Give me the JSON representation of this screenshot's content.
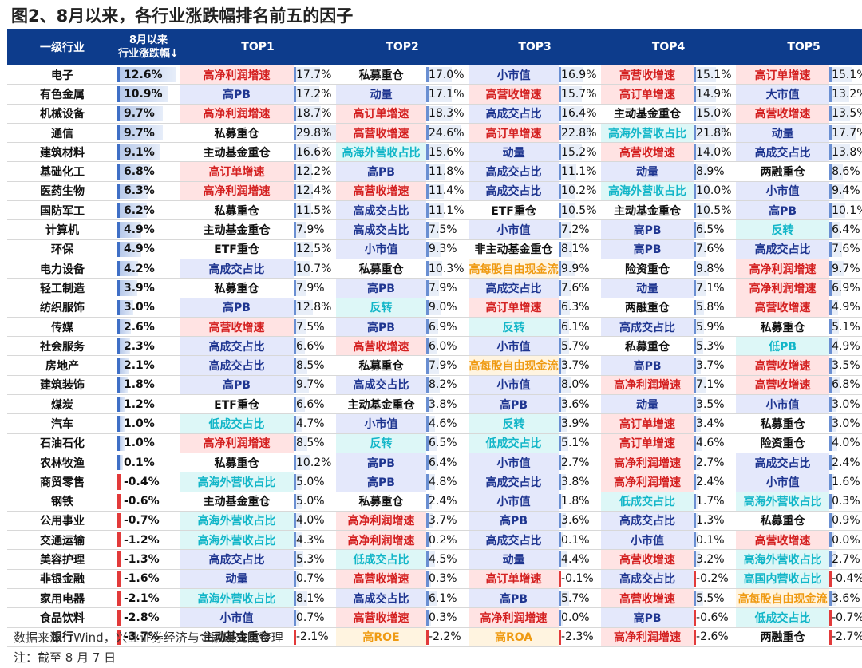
{
  "title": "图2、8月以来，各行业涨跌幅排名前五的因子",
  "header": {
    "industry": "一级行业",
    "perf_line1": "8月以来",
    "perf_line2": "行业涨跌幅↓",
    "tops": [
      "TOP1",
      "TOP2",
      "TOP3",
      "TOP4",
      "TOP5"
    ]
  },
  "colors": {
    "header_bg": "#0d3c8c",
    "red": "#d42020",
    "blue": "#1e3590",
    "cyan": "#12b6c8",
    "orange": "#ef9a12"
  },
  "rows": [
    {
      "industry": "电子",
      "perf": "12.6%",
      "perf_num": 12.6,
      "factors": [
        [
          "高净利润增速",
          "red",
          "17.7%",
          17.7
        ],
        [
          "私募重仓",
          "plain",
          "17.0%",
          17.0
        ],
        [
          "小市值",
          "blue",
          "16.9%",
          16.9
        ],
        [
          "高营收增速",
          "red",
          "15.1%",
          15.1
        ],
        [
          "高订单增速",
          "red",
          "15.1%",
          15.1
        ]
      ]
    },
    {
      "industry": "有色金属",
      "perf": "10.9%",
      "perf_num": 10.9,
      "factors": [
        [
          "高PB",
          "blue",
          "17.2%",
          17.2
        ],
        [
          "动量",
          "blue",
          "17.1%",
          17.1
        ],
        [
          "高营收增速",
          "red",
          "15.7%",
          15.7
        ],
        [
          "高订单增速",
          "red",
          "14.9%",
          14.9
        ],
        [
          "大市值",
          "blue",
          "13.2%",
          13.2
        ]
      ]
    },
    {
      "industry": "机械设备",
      "perf": "9.7%",
      "perf_num": 9.7,
      "factors": [
        [
          "高净利润增速",
          "red",
          "18.7%",
          18.7
        ],
        [
          "高订单增速",
          "red",
          "18.3%",
          18.3
        ],
        [
          "高成交占比",
          "blue",
          "16.4%",
          16.4
        ],
        [
          "主动基金重仓",
          "plain",
          "15.0%",
          15.0
        ],
        [
          "高营收增速",
          "red",
          "13.5%",
          13.5
        ]
      ]
    },
    {
      "industry": "通信",
      "perf": "9.7%",
      "perf_num": 9.7,
      "factors": [
        [
          "私募重仓",
          "plain",
          "29.8%",
          29.8
        ],
        [
          "高营收增速",
          "red",
          "24.6%",
          24.6
        ],
        [
          "高订单增速",
          "red",
          "22.8%",
          22.8
        ],
        [
          "高海外营收占比",
          "cyan",
          "21.8%",
          21.8
        ],
        [
          "动量",
          "blue",
          "17.7%",
          17.7
        ]
      ]
    },
    {
      "industry": "建筑材料",
      "perf": "9.1%",
      "perf_num": 9.1,
      "factors": [
        [
          "主动基金重仓",
          "plain",
          "16.6%",
          16.6
        ],
        [
          "高海外营收占比",
          "cyan",
          "15.6%",
          15.6
        ],
        [
          "动量",
          "blue",
          "15.2%",
          15.2
        ],
        [
          "高营收增速",
          "red",
          "14.0%",
          14.0
        ],
        [
          "高成交占比",
          "blue",
          "13.8%",
          13.8
        ]
      ]
    },
    {
      "industry": "基础化工",
      "perf": "6.8%",
      "perf_num": 6.8,
      "factors": [
        [
          "高订单增速",
          "red",
          "12.2%",
          12.2
        ],
        [
          "高PB",
          "blue",
          "11.8%",
          11.8
        ],
        [
          "高成交占比",
          "blue",
          "11.1%",
          11.1
        ],
        [
          "动量",
          "blue",
          "8.9%",
          8.9
        ],
        [
          "两融重仓",
          "plain",
          "8.6%",
          8.6
        ]
      ]
    },
    {
      "industry": "医药生物",
      "perf": "6.3%",
      "perf_num": 6.3,
      "factors": [
        [
          "高净利润增速",
          "red",
          "12.4%",
          12.4
        ],
        [
          "高营收增速",
          "red",
          "11.4%",
          11.4
        ],
        [
          "高成交占比",
          "blue",
          "10.2%",
          10.2
        ],
        [
          "高海外营收占比",
          "cyan",
          "10.0%",
          10.0
        ],
        [
          "小市值",
          "blue",
          "9.4%",
          9.4
        ]
      ]
    },
    {
      "industry": "国防军工",
      "perf": "6.2%",
      "perf_num": 6.2,
      "factors": [
        [
          "私募重仓",
          "plain",
          "11.5%",
          11.5
        ],
        [
          "高成交占比",
          "blue",
          "11.1%",
          11.1
        ],
        [
          "ETF重仓",
          "plain",
          "10.5%",
          10.5
        ],
        [
          "主动基金重仓",
          "plain",
          "10.5%",
          10.5
        ],
        [
          "高PB",
          "blue",
          "10.1%",
          10.1
        ]
      ]
    },
    {
      "industry": "计算机",
      "perf": "4.9%",
      "perf_num": 4.9,
      "factors": [
        [
          "主动基金重仓",
          "plain",
          "7.9%",
          7.9
        ],
        [
          "高成交占比",
          "blue",
          "7.5%",
          7.5
        ],
        [
          "小市值",
          "blue",
          "7.2%",
          7.2
        ],
        [
          "高PB",
          "blue",
          "6.5%",
          6.5
        ],
        [
          "反转",
          "cyan",
          "6.4%",
          6.4
        ]
      ]
    },
    {
      "industry": "环保",
      "perf": "4.9%",
      "perf_num": 4.9,
      "factors": [
        [
          "ETF重仓",
          "plain",
          "12.5%",
          12.5
        ],
        [
          "小市值",
          "blue",
          "9.3%",
          9.3
        ],
        [
          "非主动基金重仓",
          "plain",
          "8.1%",
          8.1
        ],
        [
          "高PB",
          "blue",
          "7.6%",
          7.6
        ],
        [
          "高成交占比",
          "blue",
          "7.6%",
          7.6
        ]
      ]
    },
    {
      "industry": "电力设备",
      "perf": "4.2%",
      "perf_num": 4.2,
      "factors": [
        [
          "高成交占比",
          "blue",
          "10.7%",
          10.7
        ],
        [
          "私募重仓",
          "plain",
          "10.3%",
          10.3
        ],
        [
          "高每股自由现金流",
          "orange",
          "9.9%",
          9.9
        ],
        [
          "险资重仓",
          "plain",
          "9.8%",
          9.8
        ],
        [
          "高净利润增速",
          "red",
          "9.7%",
          9.7
        ]
      ]
    },
    {
      "industry": "轻工制造",
      "perf": "3.9%",
      "perf_num": 3.9,
      "factors": [
        [
          "私募重仓",
          "plain",
          "7.9%",
          7.9
        ],
        [
          "高PB",
          "blue",
          "7.9%",
          7.9
        ],
        [
          "高成交占比",
          "blue",
          "7.6%",
          7.6
        ],
        [
          "动量",
          "blue",
          "7.1%",
          7.1
        ],
        [
          "高净利润增速",
          "red",
          "6.9%",
          6.9
        ]
      ]
    },
    {
      "industry": "纺织服饰",
      "perf": "3.0%",
      "perf_num": 3.0,
      "factors": [
        [
          "高PB",
          "blue",
          "12.8%",
          12.8
        ],
        [
          "反转",
          "cyan",
          "9.0%",
          9.0
        ],
        [
          "高订单增速",
          "red",
          "6.3%",
          6.3
        ],
        [
          "两融重仓",
          "plain",
          "5.8%",
          5.8
        ],
        [
          "高营收增速",
          "red",
          "4.9%",
          4.9
        ]
      ]
    },
    {
      "industry": "传媒",
      "perf": "2.6%",
      "perf_num": 2.6,
      "factors": [
        [
          "高营收增速",
          "red",
          "7.5%",
          7.5
        ],
        [
          "高PB",
          "blue",
          "6.9%",
          6.9
        ],
        [
          "反转",
          "cyan",
          "6.1%",
          6.1
        ],
        [
          "高成交占比",
          "blue",
          "5.9%",
          5.9
        ],
        [
          "私募重仓",
          "plain",
          "5.1%",
          5.1
        ]
      ]
    },
    {
      "industry": "社会服务",
      "perf": "2.3%",
      "perf_num": 2.3,
      "factors": [
        [
          "高成交占比",
          "blue",
          "6.6%",
          6.6
        ],
        [
          "高营收增速",
          "red",
          "6.0%",
          6.0
        ],
        [
          "小市值",
          "blue",
          "5.7%",
          5.7
        ],
        [
          "私募重仓",
          "plain",
          "5.3%",
          5.3
        ],
        [
          "低PB",
          "cyan",
          "4.9%",
          4.9
        ]
      ]
    },
    {
      "industry": "房地产",
      "perf": "2.1%",
      "perf_num": 2.1,
      "factors": [
        [
          "高成交占比",
          "blue",
          "8.5%",
          8.5
        ],
        [
          "私募重仓",
          "plain",
          "7.9%",
          7.9
        ],
        [
          "高每股自由现金流",
          "orange",
          "3.7%",
          3.7
        ],
        [
          "高PB",
          "blue",
          "3.7%",
          3.7
        ],
        [
          "高营收增速",
          "red",
          "3.5%",
          3.5
        ]
      ]
    },
    {
      "industry": "建筑装饰",
      "perf": "1.8%",
      "perf_num": 1.8,
      "factors": [
        [
          "高PB",
          "blue",
          "9.7%",
          9.7
        ],
        [
          "高成交占比",
          "blue",
          "8.2%",
          8.2
        ],
        [
          "小市值",
          "blue",
          "8.0%",
          8.0
        ],
        [
          "高净利润增速",
          "red",
          "7.1%",
          7.1
        ],
        [
          "高营收增速",
          "red",
          "6.8%",
          6.8
        ]
      ]
    },
    {
      "industry": "煤炭",
      "perf": "1.2%",
      "perf_num": 1.2,
      "factors": [
        [
          "ETF重仓",
          "plain",
          "6.6%",
          6.6
        ],
        [
          "主动基金重仓",
          "plain",
          "3.8%",
          3.8
        ],
        [
          "高PB",
          "blue",
          "3.6%",
          3.6
        ],
        [
          "动量",
          "blue",
          "3.5%",
          3.5
        ],
        [
          "小市值",
          "blue",
          "3.0%",
          3.0
        ]
      ]
    },
    {
      "industry": "汽车",
      "perf": "1.0%",
      "perf_num": 1.0,
      "factors": [
        [
          "低成交占比",
          "cyan",
          "4.7%",
          4.7
        ],
        [
          "小市值",
          "blue",
          "4.6%",
          4.6
        ],
        [
          "反转",
          "cyan",
          "3.9%",
          3.9
        ],
        [
          "高订单增速",
          "red",
          "3.4%",
          3.4
        ],
        [
          "私募重仓",
          "plain",
          "3.0%",
          3.0
        ]
      ]
    },
    {
      "industry": "石油石化",
      "perf": "1.0%",
      "perf_num": 1.0,
      "factors": [
        [
          "高净利润增速",
          "red",
          "8.5%",
          8.5
        ],
        [
          "反转",
          "cyan",
          "6.5%",
          6.5
        ],
        [
          "低成交占比",
          "cyan",
          "5.1%",
          5.1
        ],
        [
          "高订单增速",
          "red",
          "4.6%",
          4.6
        ],
        [
          "险资重仓",
          "plain",
          "4.0%",
          4.0
        ]
      ]
    },
    {
      "industry": "农林牧渔",
      "perf": "0.1%",
      "perf_num": 0.1,
      "factors": [
        [
          "私募重仓",
          "plain",
          "10.2%",
          10.2
        ],
        [
          "高PB",
          "blue",
          "6.4%",
          6.4
        ],
        [
          "小市值",
          "blue",
          "2.7%",
          2.7
        ],
        [
          "高净利润增速",
          "red",
          "2.7%",
          2.7
        ],
        [
          "高成交占比",
          "blue",
          "2.4%",
          2.4
        ]
      ]
    },
    {
      "industry": "商贸零售",
      "perf": "-0.4%",
      "perf_num": -0.4,
      "factors": [
        [
          "高海外营收占比",
          "cyan",
          "5.0%",
          5.0
        ],
        [
          "高PB",
          "blue",
          "4.8%",
          4.8
        ],
        [
          "高成交占比",
          "blue",
          "3.8%",
          3.8
        ],
        [
          "高净利润增速",
          "red",
          "2.4%",
          2.4
        ],
        [
          "小市值",
          "blue",
          "1.6%",
          1.6
        ]
      ]
    },
    {
      "industry": "钢铁",
      "perf": "-0.6%",
      "perf_num": -0.6,
      "factors": [
        [
          "主动基金重仓",
          "plain",
          "5.0%",
          5.0
        ],
        [
          "私募重仓",
          "plain",
          "2.4%",
          2.4
        ],
        [
          "小市值",
          "blue",
          "1.8%",
          1.8
        ],
        [
          "低成交占比",
          "cyan",
          "1.7%",
          1.7
        ],
        [
          "高海外营收占比",
          "cyan",
          "0.3%",
          0.3
        ]
      ]
    },
    {
      "industry": "公用事业",
      "perf": "-0.7%",
      "perf_num": -0.7,
      "factors": [
        [
          "高海外营收占比",
          "cyan",
          "4.0%",
          4.0
        ],
        [
          "高净利润增速",
          "red",
          "3.7%",
          3.7
        ],
        [
          "高PB",
          "blue",
          "3.6%",
          3.6
        ],
        [
          "高成交占比",
          "blue",
          "1.3%",
          1.3
        ],
        [
          "私募重仓",
          "plain",
          "0.9%",
          0.9
        ]
      ]
    },
    {
      "industry": "交通运输",
      "perf": "-1.2%",
      "perf_num": -1.2,
      "factors": [
        [
          "高海外营收占比",
          "cyan",
          "4.3%",
          4.3
        ],
        [
          "高净利润增速",
          "red",
          "0.2%",
          0.2
        ],
        [
          "高成交占比",
          "blue",
          "0.1%",
          0.1
        ],
        [
          "小市值",
          "blue",
          "0.1%",
          0.1
        ],
        [
          "高营收增速",
          "red",
          "0.0%",
          0.0
        ]
      ]
    },
    {
      "industry": "美容护理",
      "perf": "-1.3%",
      "perf_num": -1.3,
      "factors": [
        [
          "高成交占比",
          "blue",
          "5.3%",
          5.3
        ],
        [
          "低成交占比",
          "cyan",
          "4.5%",
          4.5
        ],
        [
          "动量",
          "blue",
          "4.4%",
          4.4
        ],
        [
          "高营收增速",
          "red",
          "3.2%",
          3.2
        ],
        [
          "高海外营收占比",
          "cyan",
          "2.7%",
          2.7
        ]
      ]
    },
    {
      "industry": "非银金融",
      "perf": "-1.6%",
      "perf_num": -1.6,
      "factors": [
        [
          "动量",
          "blue",
          "0.7%",
          0.7
        ],
        [
          "高营收增速",
          "red",
          "0.3%",
          0.3
        ],
        [
          "高订单增速",
          "red",
          "-0.1%",
          -0.1
        ],
        [
          "高成交占比",
          "blue",
          "-0.2%",
          -0.2
        ],
        [
          "高国内营收占比",
          "cyan",
          "-0.4%",
          -0.4
        ]
      ]
    },
    {
      "industry": "家用电器",
      "perf": "-2.1%",
      "perf_num": -2.1,
      "factors": [
        [
          "高海外营收占比",
          "cyan",
          "8.1%",
          8.1
        ],
        [
          "高成交占比",
          "blue",
          "6.1%",
          6.1
        ],
        [
          "高PB",
          "blue",
          "5.7%",
          5.7
        ],
        [
          "高营收增速",
          "red",
          "5.5%",
          5.5
        ],
        [
          "高每股自由现金流",
          "orange",
          "3.6%",
          3.6
        ]
      ]
    },
    {
      "industry": "食品饮料",
      "perf": "-2.8%",
      "perf_num": -2.8,
      "factors": [
        [
          "小市值",
          "blue",
          "0.7%",
          0.7
        ],
        [
          "高营收增速",
          "red",
          "0.3%",
          0.3
        ],
        [
          "高净利润增速",
          "red",
          "0.0%",
          0.0
        ],
        [
          "高PB",
          "blue",
          "-0.6%",
          -0.6
        ],
        [
          "低成交占比",
          "cyan",
          "-0.7%",
          -0.7
        ]
      ]
    },
    {
      "industry": "银行",
      "perf": "-3.7%",
      "perf_num": -3.7,
      "factors": [
        [
          "主动基金重仓",
          "plain",
          "-2.1%",
          -2.1
        ],
        [
          "高ROE",
          "orange",
          "-2.2%",
          -2.2
        ],
        [
          "高ROA",
          "orange",
          "-2.3%",
          -2.3
        ],
        [
          "高净利润增速",
          "red",
          "-2.6%",
          -2.6
        ],
        [
          "两融重仓",
          "plain",
          "-2.7%",
          -2.7
        ]
      ]
    }
  ],
  "footer": {
    "source": "数据来源：Wind，兴业证券经济与金融研究院整理",
    "note": "注：截至 8 月 7 日"
  }
}
